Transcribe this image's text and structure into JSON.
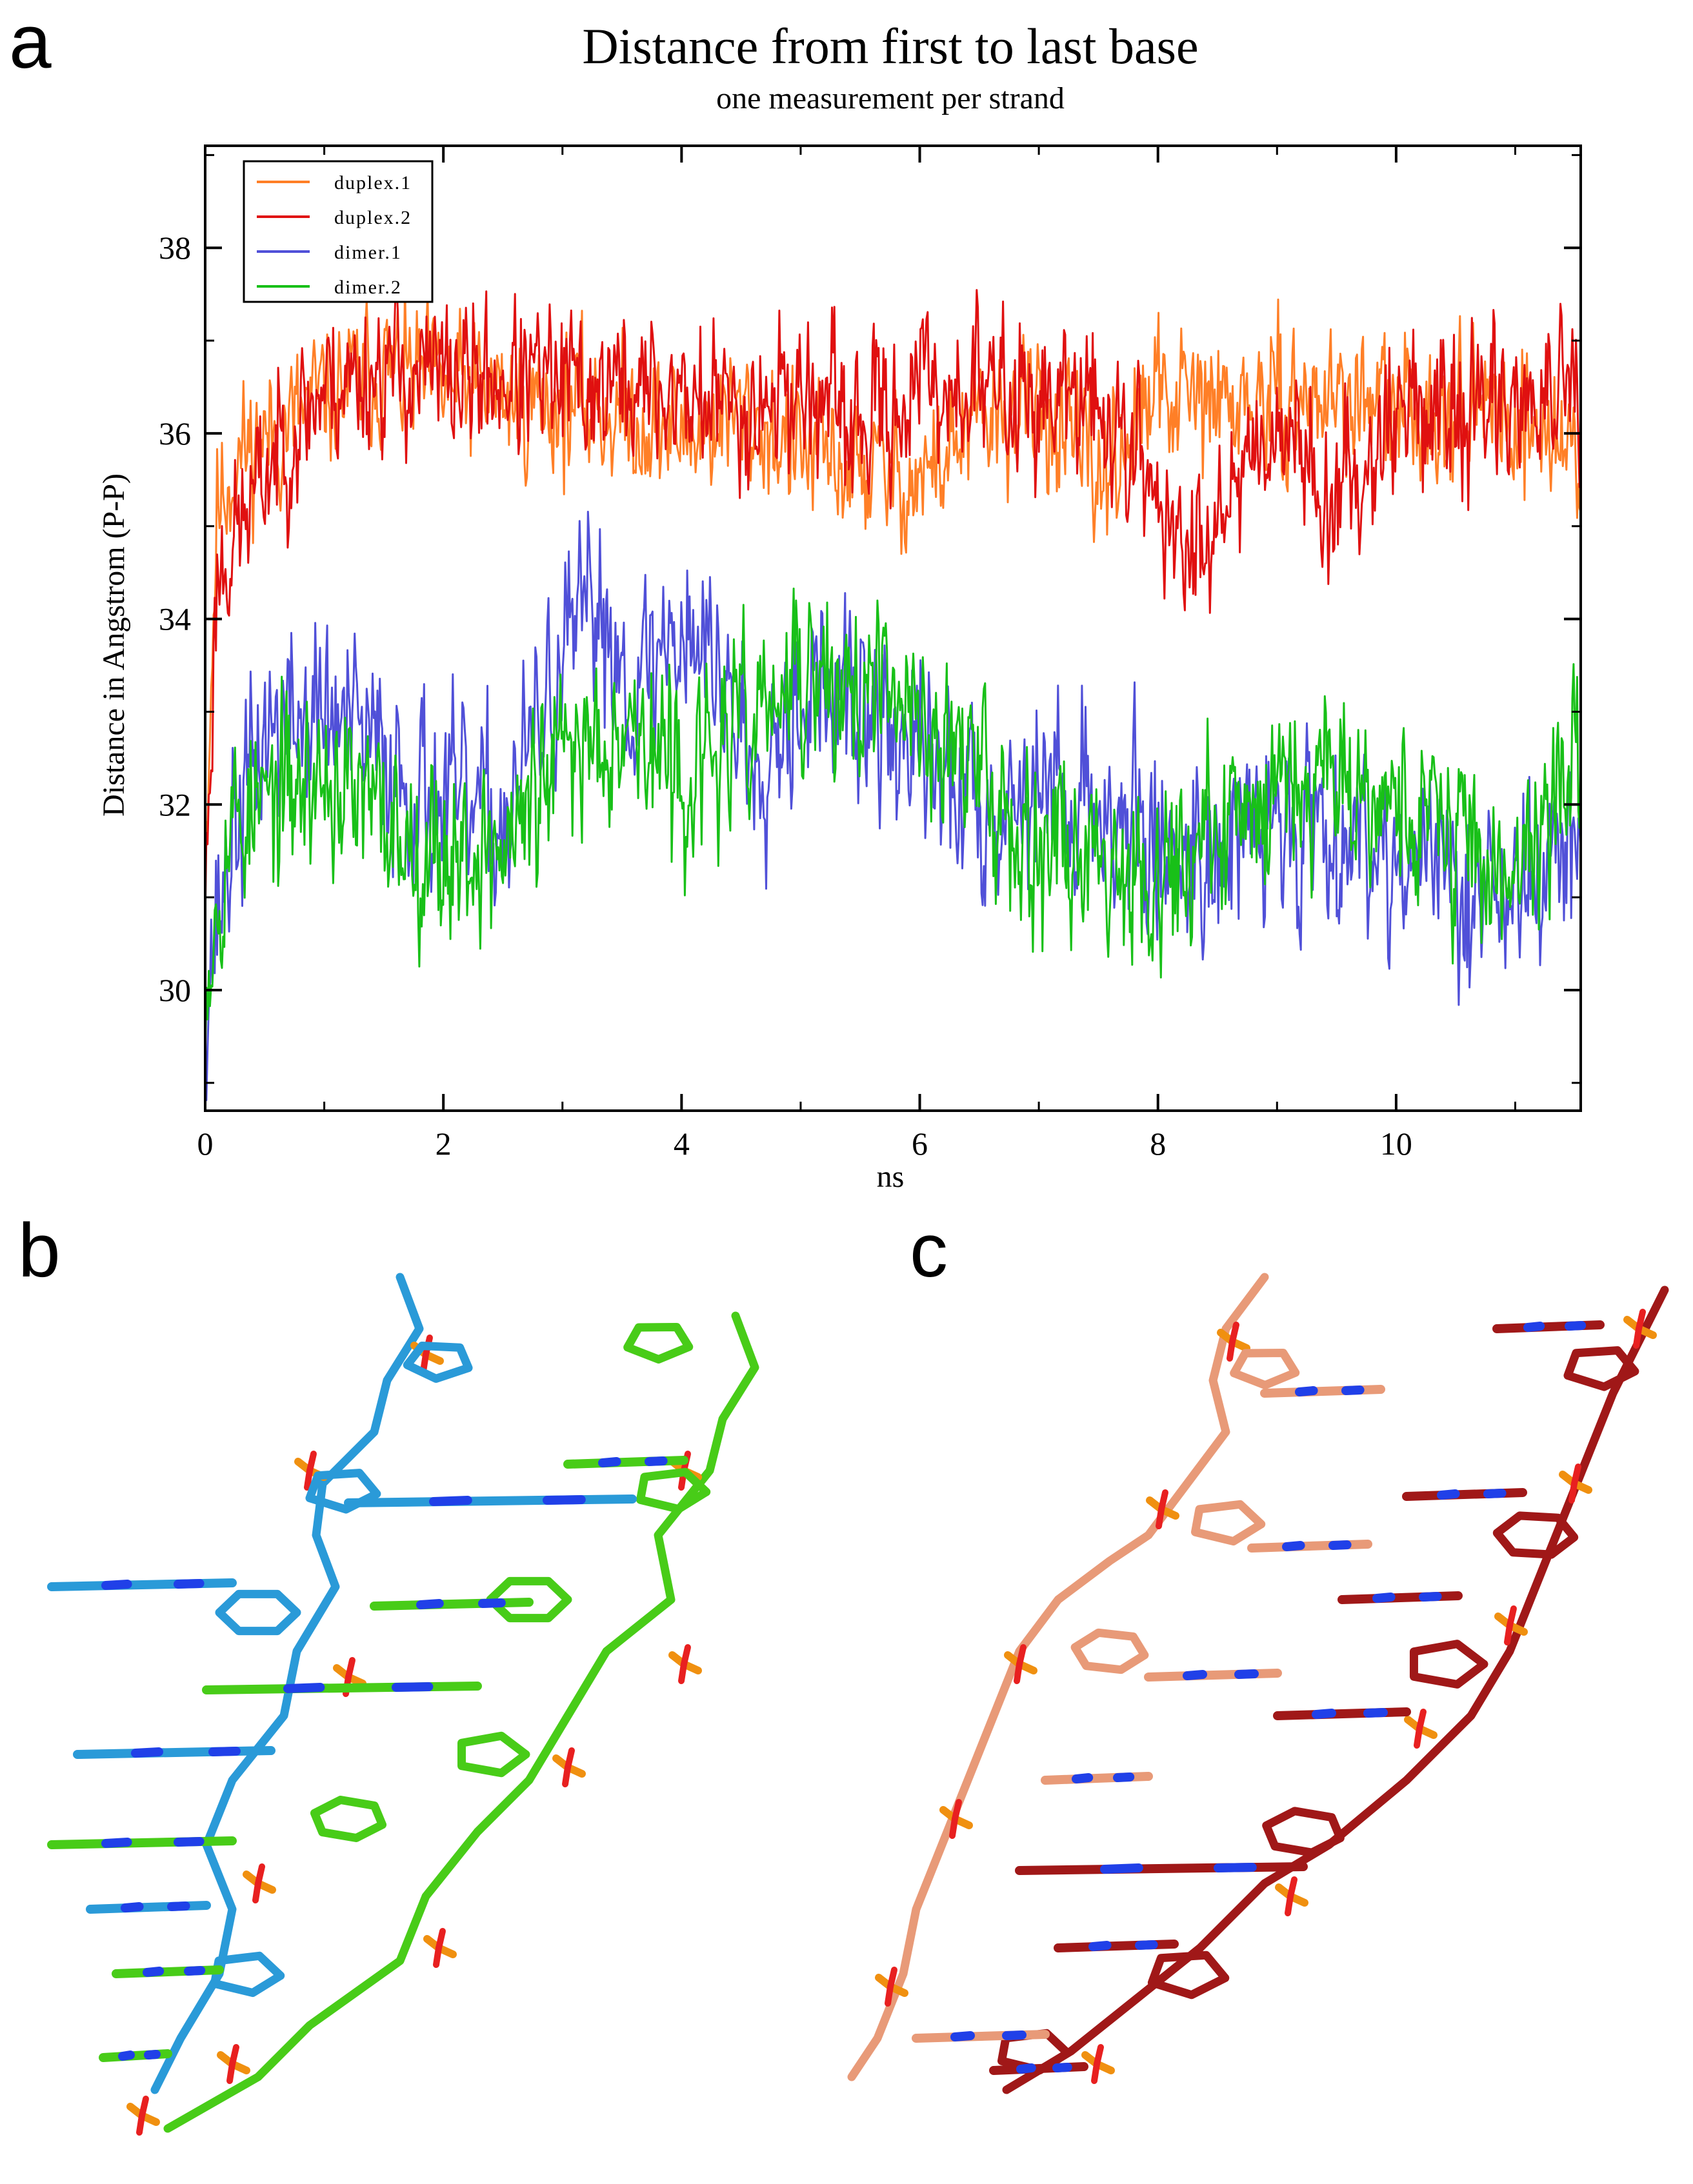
{
  "panels": {
    "a": "a",
    "b": "b",
    "c": "c"
  },
  "colors": {
    "duplex1": "#ff7f27",
    "duplex2": "#e01010",
    "dimer1": "#5050d8",
    "dimer2": "#18c018",
    "blue_strand": "#2a9ad8",
    "green_strand": "#48cc18",
    "salmon_strand": "#e89a78",
    "darkred_strand": "#a01818",
    "oxygen": "#e82020",
    "nitrogen": "#2040e8",
    "phosphorus": "#f09010"
  },
  "chart_data": {
    "type": "line",
    "title": "Distance from first to last base",
    "subtitle": "one measurement per strand",
    "xlabel": "ns",
    "ylabel": "Distance in Angstrom (P-P)",
    "xlim": [
      0,
      11.55
    ],
    "ylim": [
      28.7,
      39.1
    ],
    "xticks": [
      0,
      2,
      4,
      6,
      8,
      10
    ],
    "yticks": [
      30,
      32,
      34,
      36,
      38
    ],
    "xtick_labels": [
      "0",
      "2",
      "4",
      "6",
      "8",
      "10"
    ],
    "ytick_labels": [
      "30",
      "32",
      "34",
      "36",
      "38"
    ],
    "legend_position": "top-left",
    "series": [
      {
        "name": "duplex.1",
        "color": "#ff7f27",
        "seed": 11,
        "x": [
          0,
          0.1,
          0.3,
          0.6,
          1,
          1.5,
          2,
          2.5,
          3,
          3.5,
          4,
          4.5,
          5,
          5.5,
          6,
          6.5,
          7,
          7.5,
          8,
          8.5,
          9,
          9.5,
          10,
          10.5,
          11,
          11.5
        ],
        "y": [
          31.5,
          35.2,
          35.8,
          36.0,
          36.4,
          36.7,
          36.5,
          36.4,
          36.3,
          36.2,
          36.0,
          36.2,
          35.8,
          35.6,
          35.5,
          36.1,
          36.3,
          35.5,
          36.4,
          36.3,
          36.3,
          36.4,
          36.2,
          36.3,
          36.2,
          35.8
        ],
        "noise": 0.55
      },
      {
        "name": "duplex.2",
        "color": "#e01010",
        "seed": 23,
        "x": [
          0,
          0.1,
          0.3,
          0.6,
          1,
          1.5,
          2,
          2.5,
          3,
          3.5,
          4,
          4.5,
          5,
          5.5,
          6,
          6.5,
          7,
          7.5,
          8,
          8.2,
          8.5,
          9,
          9.5,
          10,
          10.5,
          11,
          11.5
        ],
        "y": [
          31.0,
          34.5,
          35.0,
          35.8,
          36.5,
          36.7,
          36.6,
          36.6,
          36.5,
          36.5,
          36.4,
          36.3,
          36.5,
          36.0,
          36.5,
          36.5,
          36.4,
          36.3,
          35.4,
          34.5,
          35.3,
          36.2,
          35.2,
          36.3,
          36.2,
          36.4,
          36.3
        ],
        "noise": 0.6
      },
      {
        "name": "dimer.1",
        "color": "#5050d8",
        "seed": 37,
        "x": [
          0,
          0.2,
          0.5,
          1,
          1.5,
          2,
          2.5,
          3,
          3.3,
          3.6,
          4,
          4.3,
          4.6,
          5,
          5.5,
          6,
          6.5,
          7,
          7.5,
          8,
          8.5,
          9,
          9.5,
          10,
          10.5,
          11,
          11.5
        ],
        "y": [
          30.0,
          31.5,
          32.8,
          33.0,
          32.5,
          32.0,
          31.8,
          33.5,
          34.2,
          33.2,
          34.0,
          33.5,
          32.5,
          33.3,
          33.0,
          32.5,
          32.0,
          32.2,
          32.0,
          31.5,
          31.5,
          31.8,
          31.8,
          31.5,
          31.2,
          31.0,
          31.6
        ],
        "noise": 0.75
      },
      {
        "name": "dimer.2",
        "color": "#18c018",
        "seed": 53,
        "x": [
          0,
          0.2,
          0.5,
          1,
          1.5,
          2,
          2.5,
          3,
          3.5,
          4,
          4.5,
          5,
          5.5,
          6,
          6.5,
          7,
          7.5,
          8,
          8.5,
          9,
          9.5,
          10,
          10.5,
          11,
          11.5
        ],
        "y": [
          30.2,
          31.8,
          32.0,
          32.3,
          31.8,
          31.5,
          31.5,
          32.5,
          33.0,
          32.2,
          32.8,
          33.3,
          33.2,
          33.0,
          32.3,
          31.6,
          31.5,
          31.3,
          31.6,
          32.3,
          32.5,
          32.0,
          31.7,
          31.2,
          32.5
        ],
        "noise": 0.7
      }
    ]
  }
}
